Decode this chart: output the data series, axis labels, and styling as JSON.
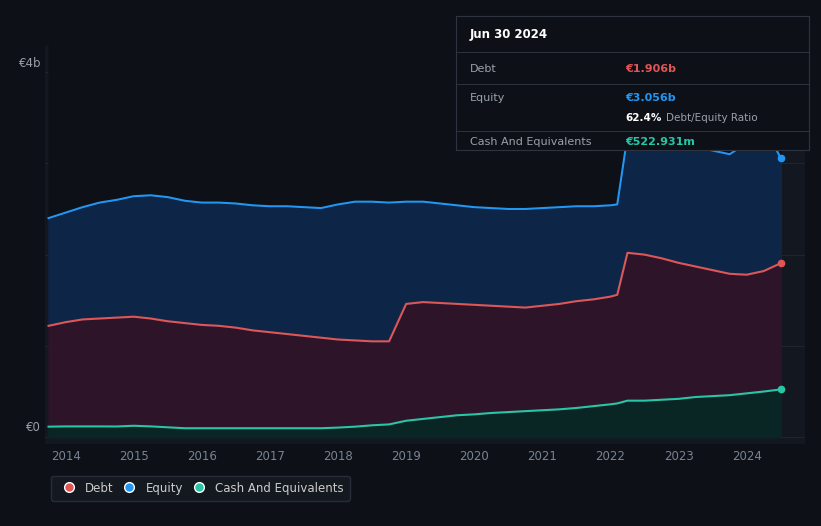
{
  "bg_color": "#0d1117",
  "plot_bg_color": "#131820",
  "grid_color": "#262b36",
  "equity_color": "#2196f3",
  "debt_color": "#e05555",
  "cash_color": "#26c6a6",
  "equity_fill": "#0d2547",
  "debt_fill": "#2d1428",
  "cash_fill": "#0a2624",
  "ylabel_4b": "€4b",
  "ylabel_0": "€0",
  "xlim": [
    2013.7,
    2024.85
  ],
  "ylim": [
    -0.08,
    4.3
  ],
  "xticks": [
    2014,
    2015,
    2016,
    2017,
    2018,
    2019,
    2020,
    2021,
    2022,
    2023,
    2024
  ],
  "legend_labels": [
    "Debt",
    "Equity",
    "Cash And Equivalents"
  ],
  "legend_colors": [
    "#e05555",
    "#2196f3",
    "#26c6a6"
  ],
  "tooltip": {
    "date": "Jun 30 2024",
    "debt_label": "Debt",
    "debt_value": "€1.906b",
    "equity_label": "Equity",
    "equity_value": "€3.056b",
    "ratio_pct": "62.4%",
    "ratio_label": "Debt/Equity Ratio",
    "cash_label": "Cash And Equivalents",
    "cash_value": "€522.931m"
  },
  "x": [
    2013.75,
    2014.0,
    2014.25,
    2014.5,
    2014.75,
    2015.0,
    2015.25,
    2015.5,
    2015.75,
    2016.0,
    2016.25,
    2016.5,
    2016.75,
    2017.0,
    2017.25,
    2017.5,
    2017.75,
    2018.0,
    2018.25,
    2018.5,
    2018.75,
    2019.0,
    2019.25,
    2019.5,
    2019.75,
    2020.0,
    2020.25,
    2020.5,
    2020.75,
    2021.0,
    2021.25,
    2021.5,
    2021.75,
    2022.0,
    2022.1,
    2022.25,
    2022.5,
    2022.75,
    2023.0,
    2023.25,
    2023.5,
    2023.75,
    2024.0,
    2024.25,
    2024.5
  ],
  "equity": [
    2.4,
    2.46,
    2.52,
    2.57,
    2.6,
    2.64,
    2.65,
    2.63,
    2.59,
    2.57,
    2.57,
    2.56,
    2.54,
    2.53,
    2.53,
    2.52,
    2.51,
    2.55,
    2.58,
    2.58,
    2.57,
    2.58,
    2.58,
    2.56,
    2.54,
    2.52,
    2.51,
    2.5,
    2.5,
    2.51,
    2.52,
    2.53,
    2.53,
    2.54,
    2.55,
    3.3,
    3.28,
    3.24,
    3.2,
    3.18,
    3.14,
    3.1,
    3.22,
    3.42,
    3.056
  ],
  "debt": [
    1.22,
    1.26,
    1.29,
    1.3,
    1.31,
    1.32,
    1.3,
    1.27,
    1.25,
    1.23,
    1.22,
    1.2,
    1.17,
    1.15,
    1.13,
    1.11,
    1.09,
    1.07,
    1.06,
    1.05,
    1.05,
    1.46,
    1.48,
    1.47,
    1.46,
    1.45,
    1.44,
    1.43,
    1.42,
    1.44,
    1.46,
    1.49,
    1.51,
    1.54,
    1.56,
    2.02,
    2.0,
    1.96,
    1.91,
    1.87,
    1.83,
    1.79,
    1.78,
    1.82,
    1.906
  ],
  "cash": [
    0.115,
    0.118,
    0.118,
    0.118,
    0.117,
    0.125,
    0.118,
    0.108,
    0.098,
    0.098,
    0.098,
    0.098,
    0.098,
    0.098,
    0.098,
    0.098,
    0.098,
    0.105,
    0.115,
    0.13,
    0.14,
    0.18,
    0.2,
    0.22,
    0.24,
    0.25,
    0.265,
    0.275,
    0.285,
    0.295,
    0.305,
    0.32,
    0.34,
    0.36,
    0.37,
    0.4,
    0.4,
    0.41,
    0.42,
    0.44,
    0.45,
    0.46,
    0.48,
    0.5,
    0.523
  ]
}
